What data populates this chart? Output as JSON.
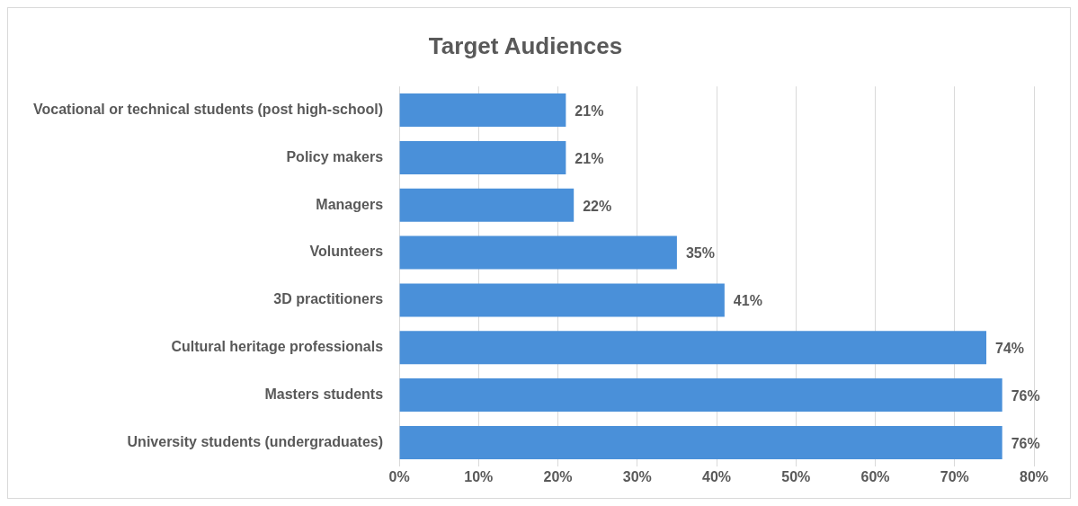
{
  "chart_data": {
    "type": "bar",
    "orientation": "horizontal",
    "title": "Target Audiences",
    "categories": [
      "Vocational or technical students (post high-school)",
      "Policy makers",
      "Managers",
      "Volunteers",
      "3D practitioners",
      "Cultural heritage professionals",
      "Masters students",
      "University students (undergraduates)"
    ],
    "values": [
      21,
      21,
      22,
      35,
      41,
      74,
      76,
      76
    ],
    "value_labels": [
      "21%",
      "21%",
      "22%",
      "35%",
      "41%",
      "74%",
      "76%",
      "76%"
    ],
    "color": "#4a90d9",
    "xlim": [
      0,
      80
    ],
    "xticks": [
      {
        "value": 0,
        "label": "0%"
      },
      {
        "value": 10,
        "label": "10%"
      },
      {
        "value": 20,
        "label": "20%"
      },
      {
        "value": 30,
        "label": "30%"
      },
      {
        "value": 40,
        "label": "40%"
      },
      {
        "value": 50,
        "label": "50%"
      },
      {
        "value": 60,
        "label": "60%"
      },
      {
        "value": 70,
        "label": "70%"
      },
      {
        "value": 80,
        "label": "80%"
      }
    ],
    "grid": "x",
    "legend": false
  }
}
